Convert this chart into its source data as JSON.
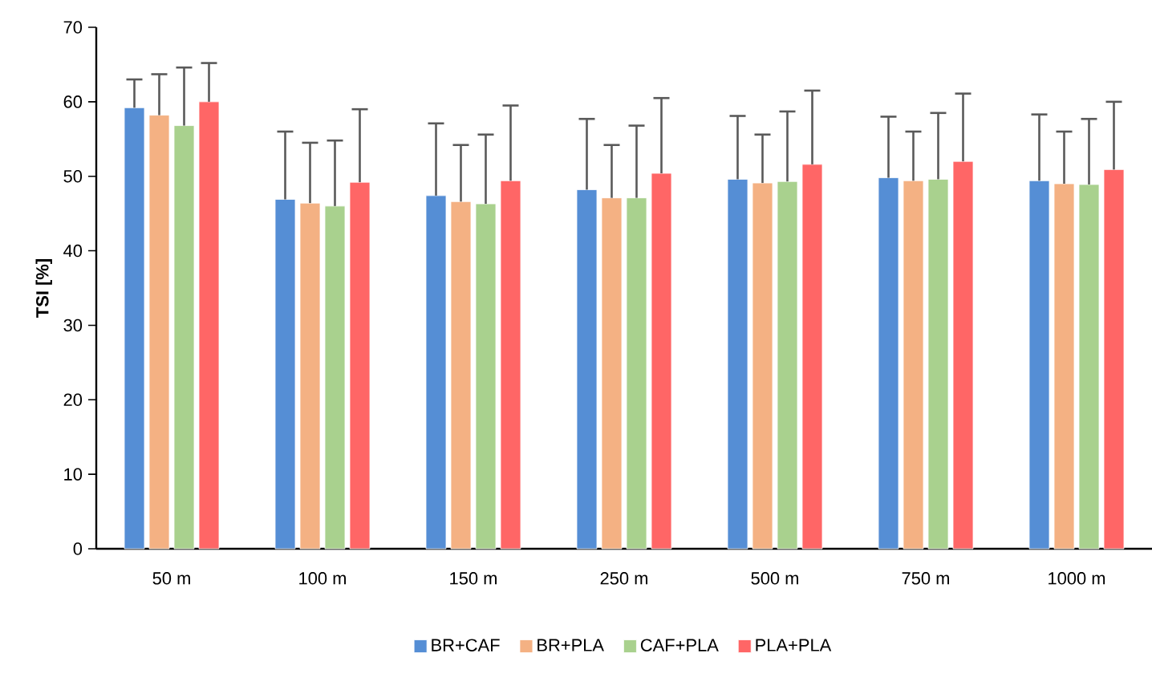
{
  "chart_data": {
    "type": "bar",
    "ylabel": "TSI [%]",
    "categories": [
      "50 m",
      "100 m",
      "150 m",
      "250 m",
      "500 m",
      "750 m",
      "1000 m"
    ],
    "ylim": [
      0,
      70
    ],
    "yticks": [
      0,
      10,
      20,
      30,
      40,
      50,
      60,
      70
    ],
    "legend": "bottom",
    "grid": false,
    "series": [
      {
        "name": "BR+CAF",
        "color": "#558ed5",
        "values": [
          59.2,
          46.9,
          47.4,
          48.2,
          49.6,
          49.8,
          49.4
        ],
        "errors": [
          [
            59.2,
            63
          ],
          [
            46.9,
            56
          ],
          [
            47.4,
            57.1
          ],
          [
            48.2,
            57.7
          ],
          [
            49.6,
            58.1
          ],
          [
            49.8,
            58
          ],
          [
            49.4,
            58.3
          ]
        ]
      },
      {
        "name": "BR+PLA",
        "color": "#f4b183",
        "values": [
          58.2,
          46.4,
          46.6,
          47.1,
          49.1,
          49.4,
          49.0
        ],
        "errors": [
          [
            58.2,
            63.7
          ],
          [
            46.4,
            54.5
          ],
          [
            46.6,
            54.2
          ],
          [
            47.1,
            54.2
          ],
          [
            49.1,
            55.6
          ],
          [
            49.4,
            56
          ],
          [
            49.0,
            56
          ]
        ]
      },
      {
        "name": "CAF+PLA",
        "color": "#a9d18e",
        "values": [
          56.8,
          46.0,
          46.3,
          47.1,
          49.3,
          49.6,
          48.9
        ],
        "errors": [
          [
            56.8,
            64.6
          ],
          [
            46.0,
            54.8
          ],
          [
            46.3,
            55.6
          ],
          [
            47.1,
            56.8
          ],
          [
            49.3,
            58.7
          ],
          [
            49.6,
            58.5
          ],
          [
            48.9,
            57.7
          ]
        ]
      },
      {
        "name": "PLA+PLA",
        "color": "#ff6666",
        "values": [
          60.0,
          49.2,
          49.4,
          50.4,
          51.6,
          52.0,
          50.9
        ],
        "errors": [
          [
            60.0,
            65.2
          ],
          [
            49.2,
            59
          ],
          [
            49.4,
            59.5
          ],
          [
            50.4,
            60.5
          ],
          [
            51.6,
            61.5
          ],
          [
            52.0,
            61.1
          ],
          [
            50.9,
            60
          ]
        ]
      }
    ]
  }
}
